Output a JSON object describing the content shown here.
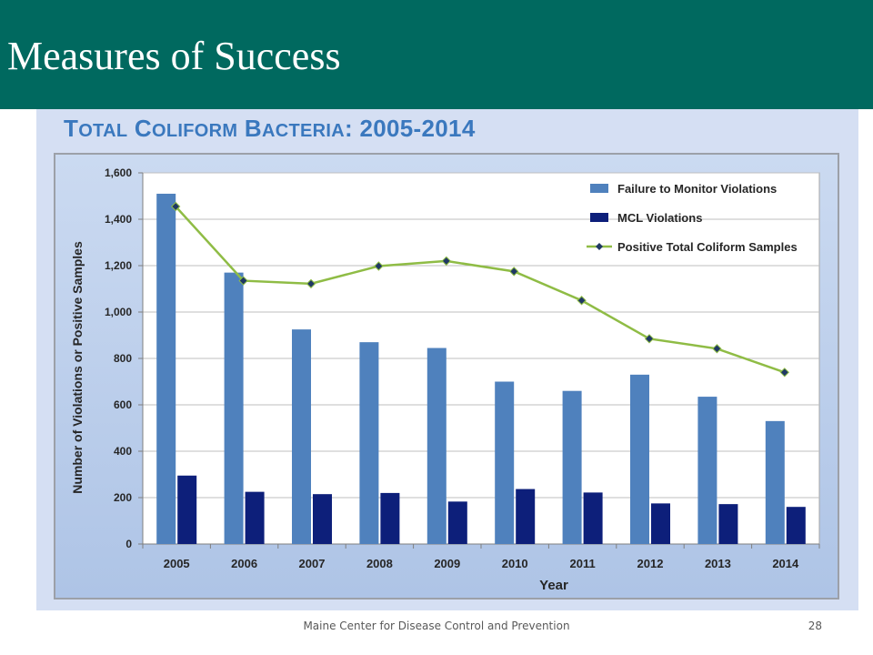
{
  "slide": {
    "title": "Measures of Success",
    "footer": "Maine Center for Disease Control and Prevention",
    "page_number": "28"
  },
  "colors": {
    "title_bar": "#00695f",
    "failure_bars": "#4f81bd",
    "mcl_bars": "#0d1f7a",
    "line": "#8fbc45",
    "line_marker": "#1f3864"
  },
  "chart_data": {
    "type": "bar",
    "title": "Total Coliform Bacteria: 2005-2014",
    "xlabel": "Year",
    "ylabel": "Number of Violations or Positive Samples",
    "ylim": [
      0,
      1600
    ],
    "yticks": [
      0,
      200,
      400,
      600,
      800,
      1000,
      1200,
      1400,
      1600
    ],
    "ytick_labels": [
      "0",
      "200",
      "400",
      "600",
      "800",
      "1,000",
      "1,200",
      "1,400",
      "1,600"
    ],
    "grid": true,
    "legend_position": "top-right",
    "categories": [
      "2005",
      "2006",
      "2007",
      "2008",
      "2009",
      "2010",
      "2011",
      "2012",
      "2013",
      "2014"
    ],
    "series": [
      {
        "name": "Failure to Monitor Violations",
        "kind": "bar",
        "color": "#4f81bd",
        "values": [
          1510,
          1170,
          925,
          870,
          845,
          700,
          660,
          730,
          635,
          530
        ]
      },
      {
        "name": "MCL Violations",
        "kind": "bar",
        "color": "#0d1f7a",
        "values": [
          295,
          225,
          215,
          220,
          183,
          237,
          222,
          175,
          172,
          160
        ]
      },
      {
        "name": "Positive Total Coliform Samples",
        "kind": "line",
        "color": "#8fbc45",
        "values": [
          1455,
          1135,
          1122,
          1198,
          1220,
          1175,
          1050,
          885,
          842,
          740
        ]
      }
    ]
  }
}
